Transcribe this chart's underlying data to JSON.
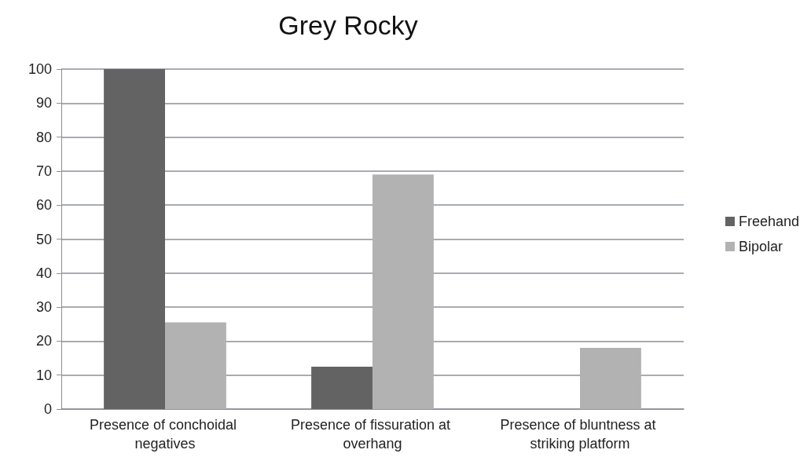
{
  "chart_data": {
    "type": "bar",
    "title": "Grey Rocky",
    "categories": [
      "Presence of conchoidal negatives",
      "Presence of fissuration at overhang",
      "Presence of bluntness at striking platform"
    ],
    "series": [
      {
        "name": "Freehand",
        "color": "#636363",
        "values": [
          100,
          12.5,
          0
        ]
      },
      {
        "name": "Bipolar",
        "color": "#b2b2b2",
        "values": [
          25.5,
          69,
          18
        ]
      }
    ],
    "ylim": [
      0,
      100
    ],
    "yticks": [
      0,
      10,
      20,
      30,
      40,
      50,
      60,
      70,
      80,
      90,
      100
    ],
    "grid": "y",
    "legend": "right"
  }
}
